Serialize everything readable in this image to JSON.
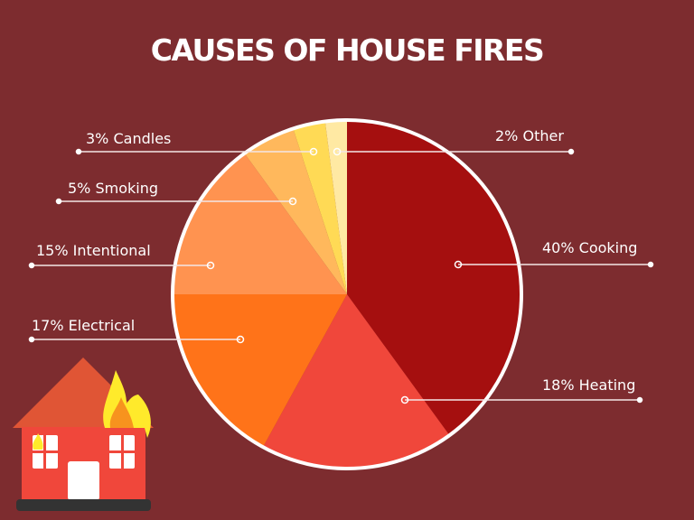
{
  "chart_data": {
    "type": "pie",
    "title": "CAUSES OF HOUSE FIRES",
    "start": "top",
    "direction": "clockwise",
    "slices": [
      {
        "label": "40% Cooking",
        "value": 40,
        "color": "#A50F0F"
      },
      {
        "label": "18% Heating",
        "value": 18,
        "color": "#F0473B"
      },
      {
        "label": "17% Electrical",
        "value": 17,
        "color": "#FF7319"
      },
      {
        "label": "15% Intentional",
        "value": 15,
        "color": "#FF9350"
      },
      {
        "label": "5% Smoking",
        "value": 5,
        "color": "#FFB85C"
      },
      {
        "label": "3% Candles",
        "value": 3,
        "color": "#FFDA55"
      },
      {
        "label": "2% Other",
        "value": 2,
        "color": "#FFE9A3"
      }
    ],
    "background": "#7D2C2F",
    "decoration": "burning-house-icon"
  }
}
